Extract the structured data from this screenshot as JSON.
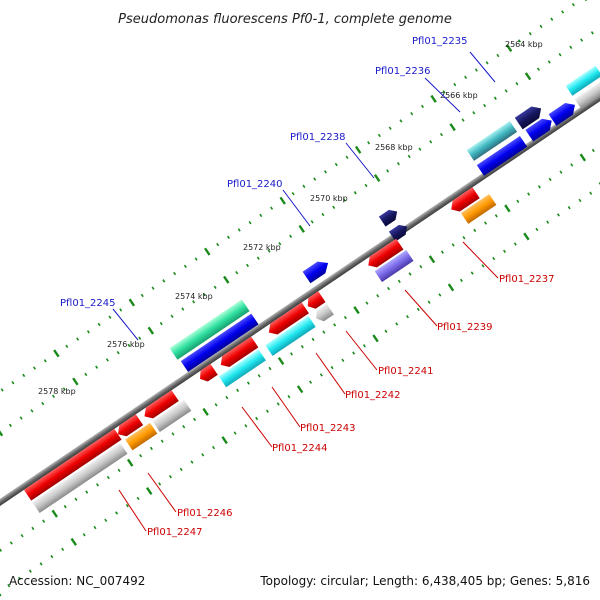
{
  "title": "Pseudomonas fluorescens Pf0-1, complete genome",
  "accession": "Accession: NC_007492",
  "summary": "Topology: circular; Length: 6,438,405 bp; Genes: 5,816",
  "ticks": [
    {
      "label": "2564 kbp",
      "at": 2564
    },
    {
      "label": "2566 kbp",
      "at": 2566
    },
    {
      "label": "2568 kbp",
      "at": 2568
    },
    {
      "label": "2570 kbp",
      "at": 2570
    },
    {
      "label": "2572 kbp",
      "at": 2572
    },
    {
      "label": "2574 kbp",
      "at": 2574
    },
    {
      "label": "2576 kbp",
      "at": 2576
    },
    {
      "label": "2578 kbp",
      "at": 2578
    }
  ],
  "genes_forward": [
    {
      "name": "Pfl01_2235",
      "labeled": true
    },
    {
      "name": "Pfl01_2236",
      "labeled": true
    },
    {
      "name": "Pfl01_2238",
      "labeled": true
    },
    {
      "name": "Pfl01_2240",
      "labeled": true
    },
    {
      "name": "Pfl01_2245",
      "labeled": true
    }
  ],
  "genes_reverse": [
    {
      "name": "Pfl01_2237",
      "labeled": true
    },
    {
      "name": "Pfl01_2239",
      "labeled": true
    },
    {
      "name": "Pfl01_2241",
      "labeled": true
    },
    {
      "name": "Pfl01_2242",
      "labeled": true
    },
    {
      "name": "Pfl01_2243",
      "labeled": true
    },
    {
      "name": "Pfl01_2244",
      "labeled": true
    },
    {
      "name": "Pfl01_2246",
      "labeled": true
    },
    {
      "name": "Pfl01_2247",
      "labeled": true
    }
  ],
  "colors": {
    "backbone": "#707070",
    "tick": "#1a8a1a",
    "label_forward": "#1a1ac8",
    "label_reverse": "#cc0000",
    "leader_forward": "#1a1ac8",
    "leader_reverse": "#cc0000"
  }
}
